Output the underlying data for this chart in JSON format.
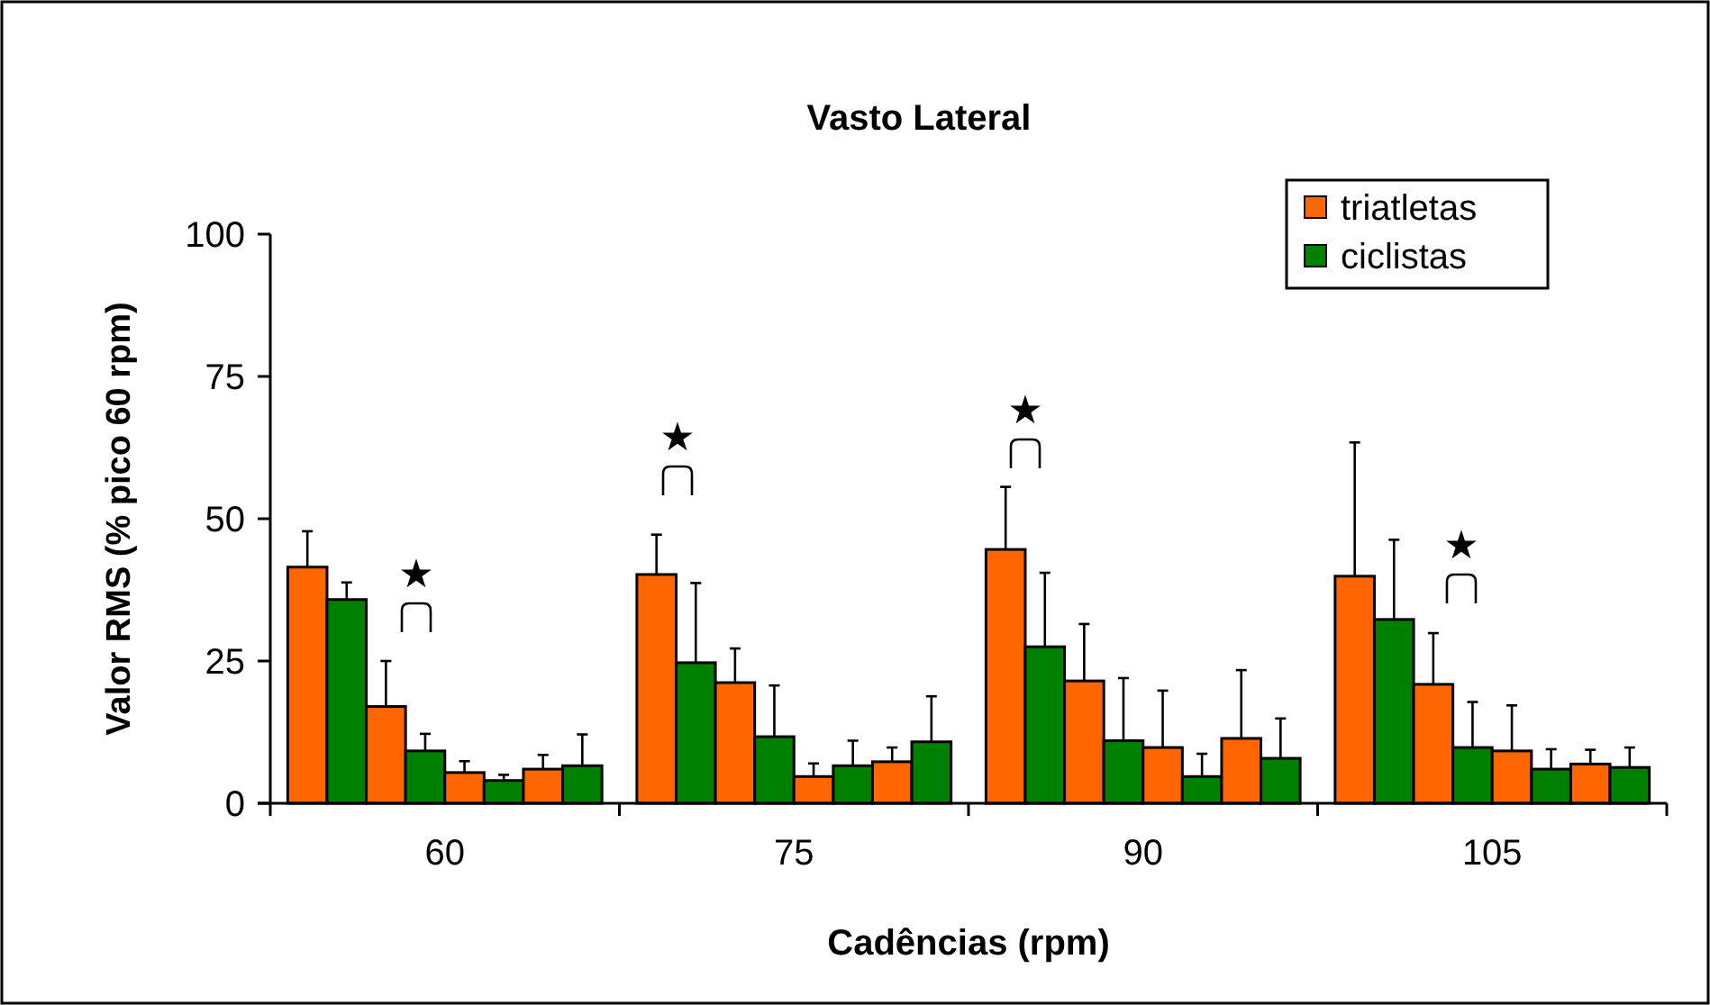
{
  "chart_data": {
    "type": "bar",
    "title": "Vasto Lateral",
    "xlabel": "Cadências (rpm)",
    "ylabel": "Valor RMS (% pico 60 rpm)",
    "categories": [
      "60",
      "75",
      "90",
      "105"
    ],
    "ylim": [
      0,
      100
    ],
    "yticks": [
      0,
      25,
      50,
      75,
      100
    ],
    "grid": false,
    "legend": "top right",
    "series": [
      {
        "name": "triatletas",
        "color": "#ff6600",
        "values": [
          41.5,
          40.2,
          44.6,
          39.9
        ],
        "errors": [
          6.3,
          7,
          11,
          23.5
        ]
      },
      {
        "name": "ciclistas",
        "color": "#008000",
        "values": [
          35.8,
          24.7,
          27.5,
          32.3
        ],
        "errors": [
          3,
          14,
          13,
          14
        ]
      },
      {
        "color": "#ff6600",
        "values": [
          17,
          21.2,
          21.5,
          20.9
        ],
        "errors": [
          8,
          6,
          10,
          9
        ]
      },
      {
        "color": "#008000",
        "values": [
          9.2,
          11.7,
          11,
          9.8
        ],
        "errors": [
          3,
          9,
          11,
          8
        ]
      },
      {
        "color": "#ff6600",
        "values": [
          5.4,
          4.7,
          9.8,
          9.2
        ],
        "errors": [
          2,
          2.3,
          10,
          8
        ]
      },
      {
        "color": "#008000",
        "values": [
          4,
          6.6,
          4.7,
          6
        ],
        "errors": [
          1,
          4.4,
          4,
          3.5
        ]
      },
      {
        "color": "#ff6600",
        "values": [
          6,
          7.3,
          11.4,
          6.9
        ],
        "errors": [
          2.5,
          2.5,
          12,
          2.5
        ]
      },
      {
        "color": "#008000",
        "values": [
          6.6,
          10.8,
          7.9,
          6.3
        ],
        "errors": [
          5.5,
          8,
          7,
          3.5
        ]
      }
    ],
    "annotations": [
      "★",
      "★",
      "★",
      "★"
    ]
  }
}
